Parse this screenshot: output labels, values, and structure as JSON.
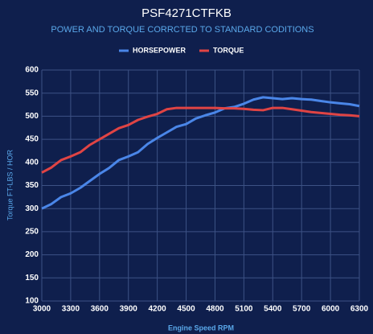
{
  "chart_data": {
    "type": "line",
    "title": "PSF4271CTFKB",
    "subtitle": "POWER AND TORQUE CORRCTED TO STANDARD CODITIONS",
    "x_label": "Engine Speed RPM",
    "y_label": "Torque FT-LBS / HOR",
    "x": [
      3000,
      3100,
      3200,
      3300,
      3400,
      3500,
      3600,
      3700,
      3800,
      3900,
      4000,
      4100,
      4200,
      4300,
      4400,
      4500,
      4600,
      4700,
      4800,
      4900,
      5000,
      5100,
      5200,
      5300,
      5400,
      5500,
      5600,
      5700,
      5800,
      5900,
      6000,
      6100,
      6200,
      6300
    ],
    "series": [
      {
        "name": "HORSEPOWER",
        "color": "#4a86e8",
        "values": [
          300,
          310,
          325,
          333,
          345,
          360,
          375,
          388,
          405,
          413,
          422,
          440,
          453,
          465,
          477,
          483,
          495,
          502,
          508,
          517,
          520,
          527,
          536,
          541,
          539,
          537,
          539,
          537,
          536,
          533,
          530,
          528,
          526,
          522
        ]
      },
      {
        "name": "TORQUE",
        "color": "#e04444",
        "values": [
          378,
          389,
          405,
          413,
          422,
          438,
          450,
          462,
          474,
          481,
          492,
          499,
          505,
          515,
          518,
          518,
          518,
          518,
          518,
          517,
          517,
          516,
          514,
          513,
          518,
          518,
          515,
          512,
          509,
          507,
          505,
          503,
          502,
          500
        ]
      }
    ],
    "xlim": [
      3000,
      6300
    ],
    "xticks": [
      3000,
      3300,
      3600,
      3900,
      4200,
      4500,
      4800,
      5100,
      5400,
      5700,
      6000,
      6300
    ],
    "ylim": [
      100,
      600
    ],
    "yticks": [
      100,
      150,
      200,
      250,
      300,
      350,
      400,
      450,
      500,
      550,
      600
    ],
    "grid": true,
    "legend": "top"
  }
}
